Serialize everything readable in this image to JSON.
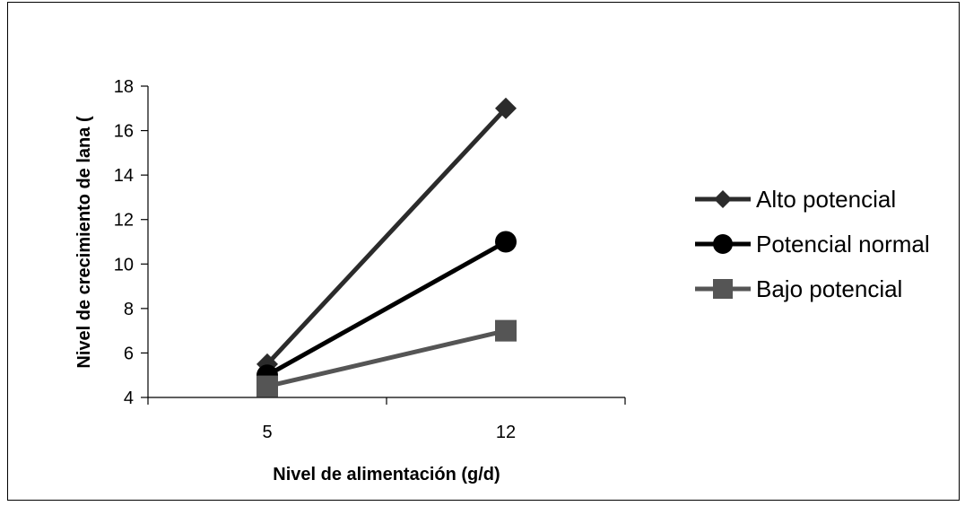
{
  "chart_data": {
    "type": "line",
    "title": "",
    "xlabel": "Nivel de alimentación (g/d)",
    "ylabel": "Nivel de crecimiento de lana (",
    "categories": [
      "5",
      "12"
    ],
    "ylim": [
      4,
      18
    ],
    "yticks": [
      4,
      6,
      8,
      10,
      12,
      14,
      16,
      18
    ],
    "grid": false,
    "legend_position": "right",
    "series": [
      {
        "name": "Alto potencial",
        "values": [
          5.5,
          17
        ],
        "color": "#2b2b2b",
        "marker": "diamond"
      },
      {
        "name": "Potencial normal",
        "values": [
          5,
          11
        ],
        "color": "#000000",
        "marker": "circle"
      },
      {
        "name": "Bajo potencial",
        "values": [
          4.5,
          7
        ],
        "color": "#555555",
        "marker": "square"
      }
    ]
  }
}
